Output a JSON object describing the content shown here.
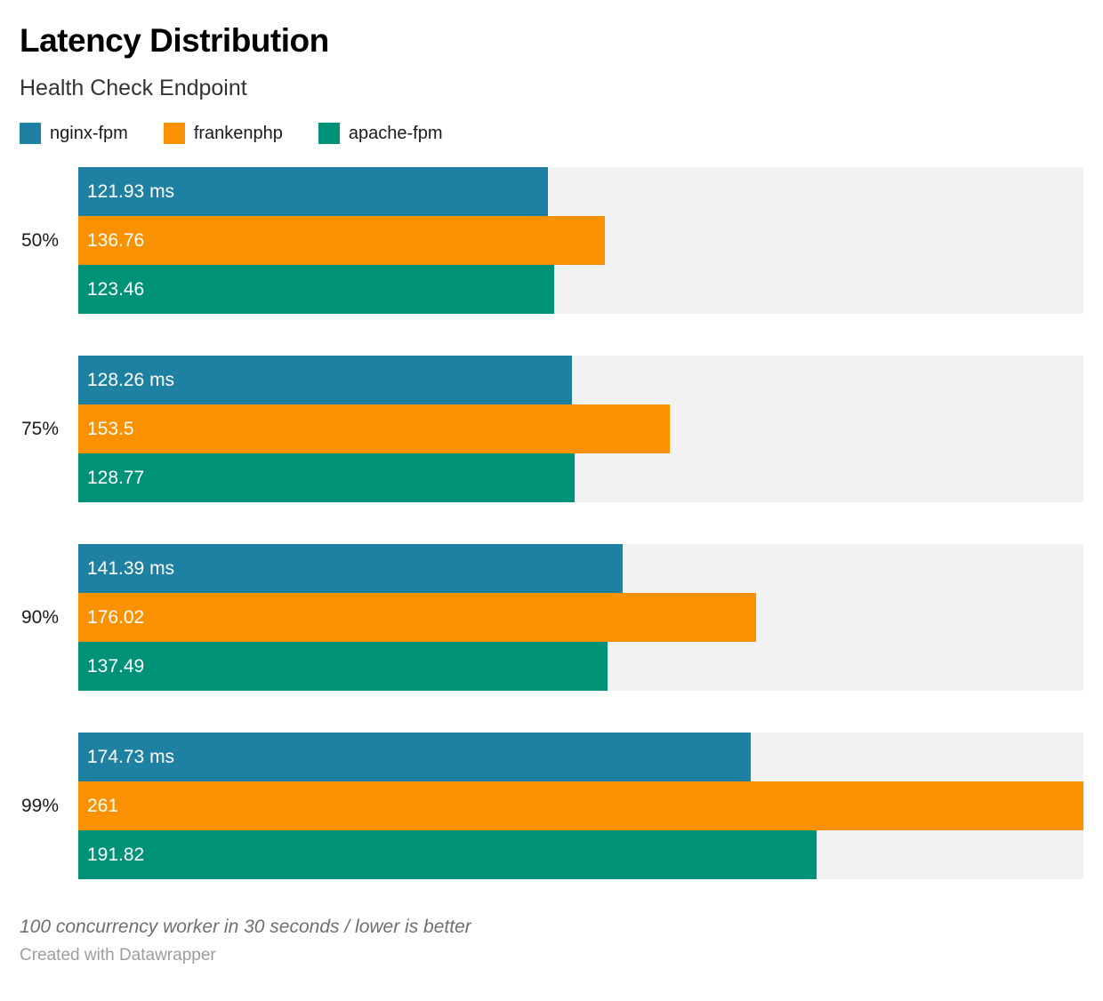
{
  "chart_data": {
    "type": "bar",
    "orientation": "horizontal",
    "title": "Latency Distribution",
    "subtitle": "Health Check Endpoint",
    "value_axis_max": 261,
    "unit": "ms",
    "grid": false,
    "legend_position": "top",
    "track_color": "#f2f2f2",
    "categories": [
      "50%",
      "75%",
      "90%",
      "99%"
    ],
    "series": [
      {
        "name": "nginx-fpm",
        "color": "#1e81a1",
        "values": [
          121.93,
          128.26,
          141.39,
          174.73
        ]
      },
      {
        "name": "frankenphp",
        "color": "#fa9100",
        "values": [
          136.76,
          153.5,
          176.02,
          261
        ]
      },
      {
        "name": "apache-fpm",
        "color": "#009277",
        "values": [
          123.46,
          128.77,
          137.49,
          191.82
        ]
      }
    ],
    "legend": [
      {
        "name": "nginx-fpm",
        "color": "#1e81a1"
      },
      {
        "name": "frankenphp",
        "color": "#fa9100"
      },
      {
        "name": "apache-fpm",
        "color": "#009277"
      }
    ],
    "groups": [
      {
        "category": "50%",
        "bars": [
          {
            "series": "nginx-fpm",
            "value": 121.93,
            "label": "121.93 ms",
            "color": "#1e81a1"
          },
          {
            "series": "frankenphp",
            "value": 136.76,
            "label": "136.76",
            "color": "#fa9100"
          },
          {
            "series": "apache-fpm",
            "value": 123.46,
            "label": "123.46",
            "color": "#009277"
          }
        ]
      },
      {
        "category": "75%",
        "bars": [
          {
            "series": "nginx-fpm",
            "value": 128.26,
            "label": "128.26 ms",
            "color": "#1e81a1"
          },
          {
            "series": "frankenphp",
            "value": 153.5,
            "label": "153.5",
            "color": "#fa9100"
          },
          {
            "series": "apache-fpm",
            "value": 128.77,
            "label": "128.77",
            "color": "#009277"
          }
        ]
      },
      {
        "category": "90%",
        "bars": [
          {
            "series": "nginx-fpm",
            "value": 141.39,
            "label": "141.39 ms",
            "color": "#1e81a1"
          },
          {
            "series": "frankenphp",
            "value": 176.02,
            "label": "176.02",
            "color": "#fa9100"
          },
          {
            "series": "apache-fpm",
            "value": 137.49,
            "label": "137.49",
            "color": "#009277"
          }
        ]
      },
      {
        "category": "99%",
        "bars": [
          {
            "series": "nginx-fpm",
            "value": 174.73,
            "label": "174.73 ms",
            "color": "#1e81a1"
          },
          {
            "series": "frankenphp",
            "value": 261,
            "label": "261",
            "color": "#fa9100"
          },
          {
            "series": "apache-fpm",
            "value": 191.82,
            "label": "191.82",
            "color": "#009277"
          }
        ]
      }
    ],
    "footnote": "100 concurrency worker in 30 seconds / lower is better",
    "credit": "Created with Datawrapper"
  }
}
